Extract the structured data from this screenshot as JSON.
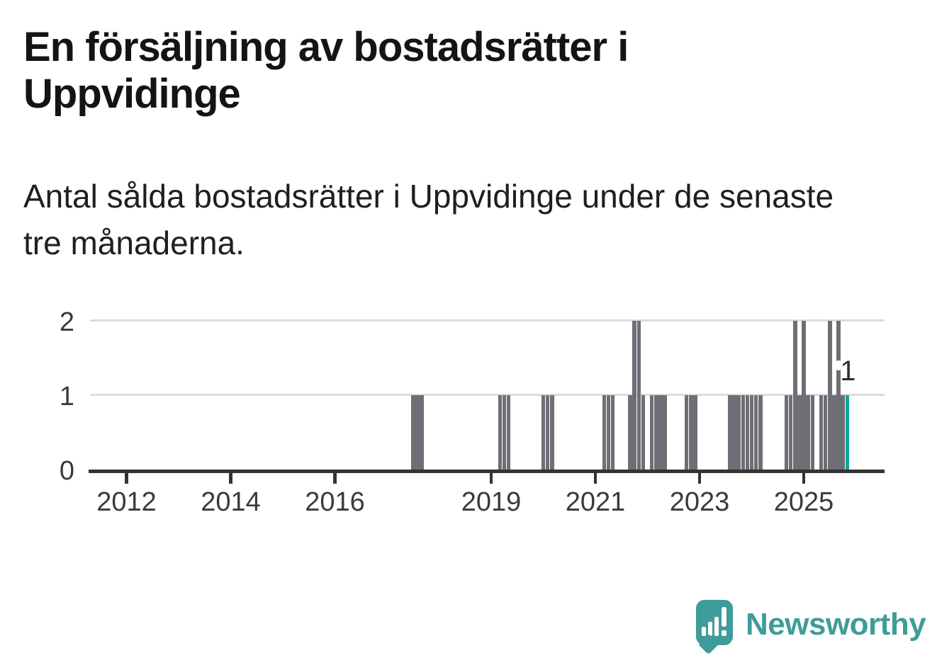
{
  "header": {
    "title": "En försäljning av bostadsrätter i Uppvidinge",
    "subtitle": "Antal sålda bostadsrätter i Uppvidinge under de senaste tre månaderna."
  },
  "chart_data": {
    "type": "bar",
    "title": "En försäljning av bostadsrätter i Uppvidinge",
    "subtitle": "Antal sålda bostadsrätter i Uppvidinge under de senaste tre månaderna.",
    "xlabel": "",
    "ylabel": "",
    "ylim": [
      0,
      2
    ],
    "y_ticks": [
      0,
      1,
      2
    ],
    "x_ticks": [
      2012,
      2014,
      2016,
      2019,
      2021,
      2023,
      2025
    ],
    "x_domain_years": [
      2011,
      2026.5
    ],
    "grid": "horizontal",
    "legend": "none",
    "frequency": "monthly",
    "note": "All months not listed below have value 0",
    "colors": {
      "bar": "#6e6e76",
      "highlight": "#0fa3a1",
      "axis": "#333333",
      "gridline": "#dcdcdc",
      "tick_label": "#3a3a3a"
    },
    "annotation": {
      "label": "1",
      "month": "2025-11"
    },
    "bars": [
      {
        "month": "2017-07",
        "value": 1
      },
      {
        "month": "2017-08",
        "value": 1
      },
      {
        "month": "2017-09",
        "value": 1
      },
      {
        "month": "2019-03",
        "value": 1
      },
      {
        "month": "2019-04",
        "value": 1
      },
      {
        "month": "2019-05",
        "value": 1
      },
      {
        "month": "2020-01",
        "value": 1
      },
      {
        "month": "2020-02",
        "value": 1
      },
      {
        "month": "2020-03",
        "value": 1
      },
      {
        "month": "2021-03",
        "value": 1
      },
      {
        "month": "2021-04",
        "value": 1
      },
      {
        "month": "2021-05",
        "value": 1
      },
      {
        "month": "2021-09",
        "value": 1
      },
      {
        "month": "2021-10",
        "value": 2
      },
      {
        "month": "2021-11",
        "value": 2
      },
      {
        "month": "2021-12",
        "value": 1
      },
      {
        "month": "2022-02",
        "value": 1
      },
      {
        "month": "2022-03",
        "value": 1
      },
      {
        "month": "2022-04",
        "value": 1
      },
      {
        "month": "2022-05",
        "value": 1
      },
      {
        "month": "2022-10",
        "value": 1
      },
      {
        "month": "2022-11",
        "value": 1
      },
      {
        "month": "2022-12",
        "value": 1
      },
      {
        "month": "2023-08",
        "value": 1
      },
      {
        "month": "2023-09",
        "value": 1
      },
      {
        "month": "2023-10",
        "value": 1
      },
      {
        "month": "2023-11",
        "value": 1
      },
      {
        "month": "2023-12",
        "value": 1
      },
      {
        "month": "2024-01",
        "value": 1
      },
      {
        "month": "2024-02",
        "value": 1
      },
      {
        "month": "2024-03",
        "value": 1
      },
      {
        "month": "2024-09",
        "value": 1
      },
      {
        "month": "2024-10",
        "value": 1
      },
      {
        "month": "2024-11",
        "value": 2
      },
      {
        "month": "2024-12",
        "value": 1
      },
      {
        "month": "2025-01",
        "value": 2
      },
      {
        "month": "2025-02",
        "value": 1
      },
      {
        "month": "2025-03",
        "value": 1
      },
      {
        "month": "2025-05",
        "value": 1
      },
      {
        "month": "2025-06",
        "value": 1
      },
      {
        "month": "2025-07",
        "value": 2
      },
      {
        "month": "2025-08",
        "value": 1
      },
      {
        "month": "2025-09",
        "value": 2
      },
      {
        "month": "2025-10",
        "value": 1
      },
      {
        "month": "2025-11",
        "value": 1,
        "highlight": true
      }
    ]
  },
  "footer": {
    "brand": "Newsworthy",
    "brand_color": "#3f9c98",
    "logo_icon": "bar-chart-speech-bubble-icon"
  }
}
